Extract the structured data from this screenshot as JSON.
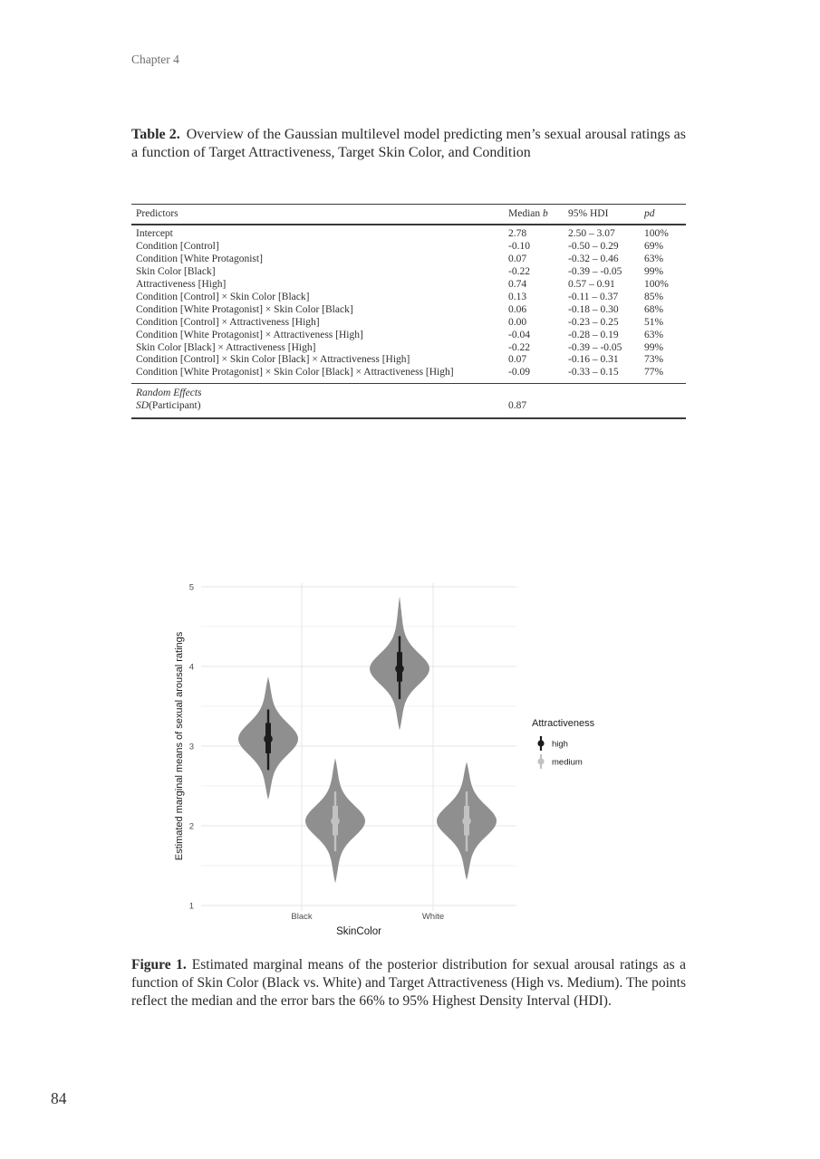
{
  "page": {
    "header": "Chapter 4",
    "page_number": "84"
  },
  "table": {
    "caption_label": "Table 2.",
    "caption_text": "Overview of the Gaussian multilevel model predicting men’s sexual arousal ratings as a function of Target Attractiveness, Target Skin Color, and Condition",
    "columns": [
      {
        "text": "Predictors"
      },
      {
        "text": "Median ",
        "italic": "b"
      },
      {
        "text": "95% HDI"
      },
      {
        "text": "",
        "italic": "pd"
      }
    ],
    "rows": [
      [
        "Intercept",
        "2.78",
        "2.50 – 3.07",
        "100%"
      ],
      [
        "Condition [Control]",
        "-0.10",
        "-0.50 – 0.29",
        "69%"
      ],
      [
        "Condition [White Protagonist]",
        "0.07",
        "-0.32 – 0.46",
        "63%"
      ],
      [
        "Skin Color [Black]",
        "-0.22",
        "-0.39 – -0.05",
        "99%"
      ],
      [
        "Attractiveness [High]",
        "0.74",
        "0.57 – 0.91",
        "100%"
      ],
      [
        "Condition [Control] × Skin Color [Black]",
        "0.13",
        "-0.11 – 0.37",
        "85%"
      ],
      [
        "Condition [White Protagonist] × Skin Color [Black]",
        "0.06",
        "-0.18 – 0.30",
        "68%"
      ],
      [
        "Condition [Control] × Attractiveness [High]",
        "0.00",
        "-0.23 – 0.25",
        "51%"
      ],
      [
        "Condition [White Protagonist] × Attractiveness [High]",
        "-0.04",
        "-0.28 – 0.19",
        "63%"
      ],
      [
        "Skin Color [Black] × Attractiveness [High]",
        "-0.22",
        "-0.39 – -0.05",
        "99%"
      ],
      [
        "Condition [Control] × Skin Color [Black] × Attractiveness [High]",
        "0.07",
        "-0.16 – 0.31",
        "73%"
      ],
      [
        "Condition [White Protagonist] × Skin Color [Black] × Attractiveness [High]",
        "-0.09",
        "-0.33 – 0.15",
        "77%"
      ]
    ],
    "random_effects": {
      "section_label": "Random Effects",
      "rows": [
        {
          "pre_italic": "SD",
          "rest": "(Participant)",
          "values": [
            "0.87",
            "",
            ""
          ]
        }
      ]
    }
  },
  "figure": {
    "caption_label": "Figure 1.",
    "caption_text": "Estimated marginal means of the posterior distribution for sexual arousal ratings as a function of Skin Color (Black vs. White) and Target Attractiveness (High vs. Medium). The points reflect the median and the error bars the 66% to 95% Highest Density Interval (HDI)."
  },
  "chart_data": {
    "type": "violin",
    "title": "",
    "xlabel": "SkinColor",
    "ylabel": "Estimated marginal means of sexual arousal ratings",
    "ylim": [
      1,
      5
    ],
    "yticks": [
      "1",
      "2",
      "3",
      "4",
      "5"
    ],
    "categories": [
      "Black",
      "White"
    ],
    "grid": true,
    "legend": {
      "title": "Attractiveness",
      "position": "right",
      "items": [
        {
          "label": "high",
          "color": "#1c1c1c"
        },
        {
          "label": "medium",
          "color": "#c2c2c2"
        }
      ]
    },
    "violins": [
      {
        "category": "Black",
        "group": "high",
        "median": 3.09,
        "hdi66": [
          2.91,
          3.29
        ],
        "hdi95": [
          2.7,
          3.46
        ],
        "range": [
          2.33,
          3.87
        ]
      },
      {
        "category": "Black",
        "group": "medium",
        "median": 2.06,
        "hdi66": [
          1.88,
          2.25
        ],
        "hdi95": [
          1.68,
          2.43
        ],
        "range": [
          1.28,
          2.85
        ]
      },
      {
        "category": "White",
        "group": "high",
        "median": 3.97,
        "hdi66": [
          3.81,
          4.18
        ],
        "hdi95": [
          3.59,
          4.38
        ],
        "range": [
          3.2,
          4.88
        ]
      },
      {
        "category": "White",
        "group": "medium",
        "median": 2.06,
        "hdi66": [
          1.88,
          2.25
        ],
        "hdi95": [
          1.68,
          2.43
        ],
        "range": [
          1.32,
          2.8
        ]
      }
    ],
    "violin_fill": "#8f8f8f",
    "colors": {
      "grid_major": "#e4e4e4",
      "grid_minor": "#f2f2f2",
      "axis_text": "#4d4d4d",
      "title_text": "#1a1a1a"
    }
  }
}
